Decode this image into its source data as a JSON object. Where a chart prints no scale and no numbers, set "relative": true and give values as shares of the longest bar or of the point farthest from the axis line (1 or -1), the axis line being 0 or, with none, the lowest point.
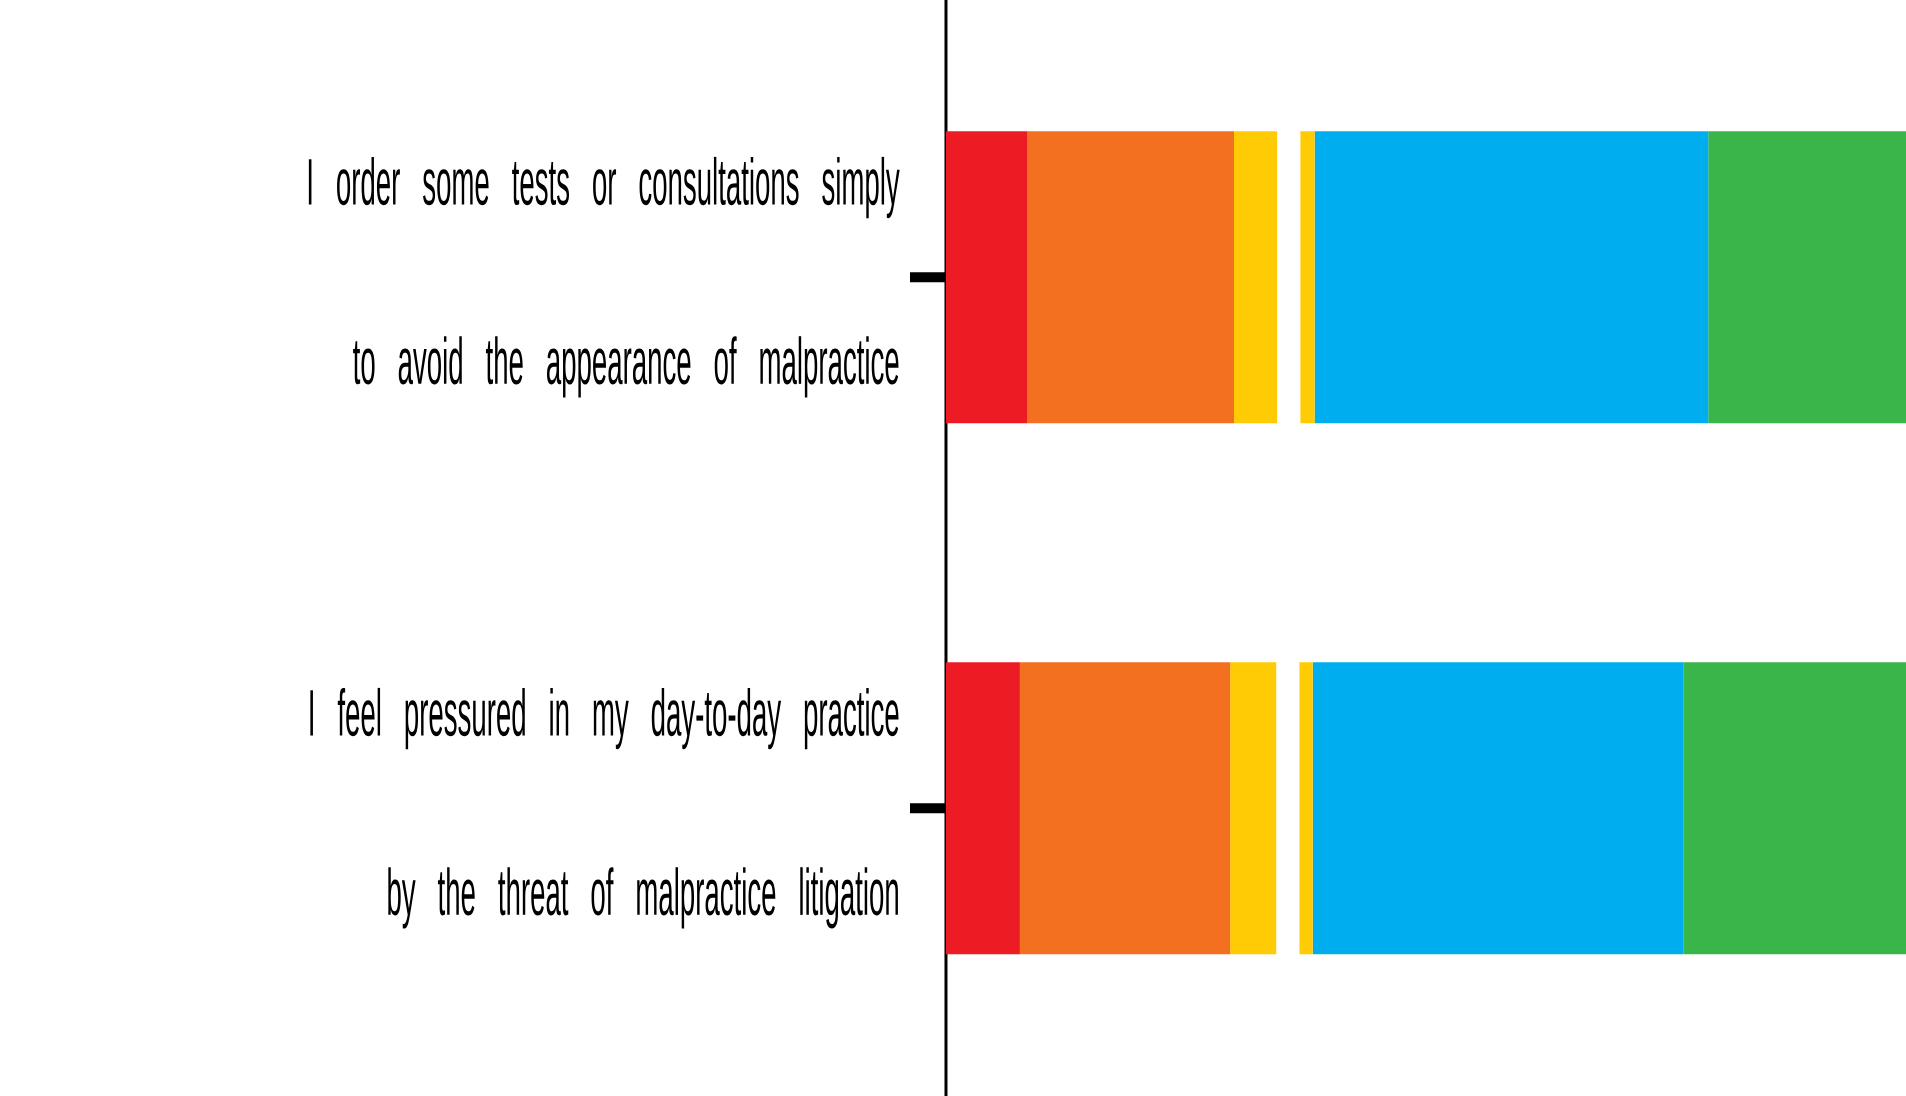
{
  "chart_data": {
    "type": "bar",
    "orientation": "horizontal",
    "stacked": true,
    "relative": true,
    "categories": [
      "I order some tests or consultations simply to avoid the appearance of malpractice",
      "I feel pressured in my day-to-day practice by the threat of malpractice litigation"
    ],
    "series": [
      {
        "color": "#ed1c24",
        "values": [
          0.085,
          0.077
        ]
      },
      {
        "color": "#f37021",
        "values": [
          0.215,
          0.219
        ]
      },
      {
        "color": "#ffcb05",
        "values": [
          0.045,
          0.048
        ]
      },
      {
        "color": "#ffffff",
        "values": [
          0.024,
          0.024
        ]
      },
      {
        "color": "#ffcb05",
        "values": [
          0.015,
          0.014
        ]
      },
      {
        "color": "#00aeef",
        "values": [
          0.41,
          0.386
        ]
      },
      {
        "color": "#39b54a",
        "values": [
          0.206,
          0.232
        ]
      }
    ]
  }
}
